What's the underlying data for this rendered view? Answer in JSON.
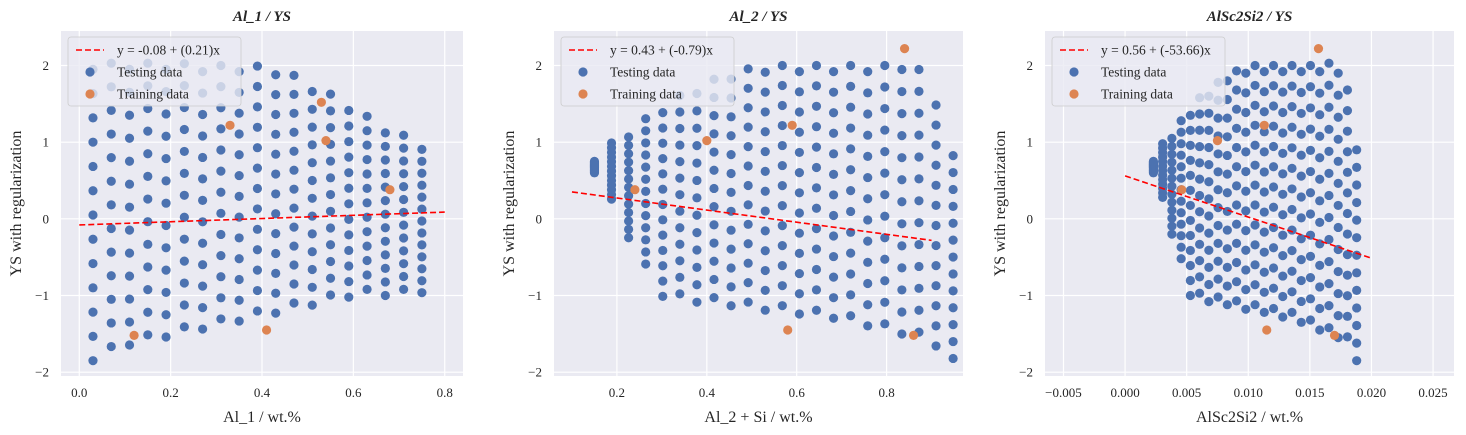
{
  "figure": {
    "background": "#ffffff",
    "axes_facecolor": "#eaeaf2",
    "grid_color": "#ffffff",
    "testing_color": "#4c72b0",
    "training_color": "#dd8452",
    "fit_color": "#ff0000"
  },
  "chart_data": [
    {
      "type": "scatter",
      "title": "Al_1 / YS",
      "xlabel": "Al_1 / wt.%",
      "ylabel": "YS with regularization",
      "xlim": [
        -0.04,
        0.84
      ],
      "ylim": [
        -2.05,
        2.45
      ],
      "xticks": [
        0.0,
        0.2,
        0.4,
        0.6,
        0.8
      ],
      "xtick_labels": [
        "0.0",
        "0.2",
        "0.4",
        "0.6",
        "0.8"
      ],
      "yticks": [
        -2,
        -1,
        0,
        1,
        2
      ],
      "ytick_labels": [
        "−2",
        "−1",
        "0",
        "1",
        "2"
      ],
      "grid": true,
      "legend": {
        "position": "upper-left",
        "entries": [
          "y = -0.08 + (0.21)x",
          "Testing data",
          "Training data"
        ]
      },
      "fit_line": {
        "label": "y = -0.08 + (0.21)x",
        "intercept": -0.08,
        "slope": 0.21,
        "x_range": [
          0.0,
          0.8
        ]
      },
      "series": [
        {
          "name": "Testing data",
          "role": "testing",
          "grid_x": [
            0.03,
            0.76
          ],
          "grid_xstep": 0.04,
          "y_top": [
            1.95,
            1.95,
            1.95,
            1.95,
            1.95,
            1.95,
            1.92,
            1.92,
            1.92,
            1.92,
            1.9,
            1.85,
            1.72,
            1.6,
            1.5,
            1.35,
            1.2,
            1.08,
            0.98,
            0.88
          ],
          "y_bot": [
            -1.85,
            -1.75,
            -1.65,
            -1.6,
            -1.55,
            -1.5,
            -1.45,
            -1.4,
            -1.35,
            -1.3,
            -1.25,
            -1.2,
            -1.15,
            -1.1,
            -1.05,
            -1.0,
            -1.0,
            -1.0,
            -1.0,
            -0.95
          ],
          "rows": 13
        },
        {
          "name": "Training data",
          "role": "training",
          "x": [
            0.12,
            0.33,
            0.41,
            0.53,
            0.54,
            0.68
          ],
          "y": [
            -1.52,
            1.22,
            -1.45,
            1.52,
            1.02,
            0.38
          ]
        }
      ]
    },
    {
      "type": "scatter",
      "title": "Al_2 / YS",
      "xlabel": "Al_2 + Si / wt.%",
      "ylabel": "YS with regularization",
      "xlim": [
        0.06,
        0.97
      ],
      "ylim": [
        -2.05,
        2.45
      ],
      "xticks": [
        0.2,
        0.4,
        0.6,
        0.8
      ],
      "xtick_labels": [
        "0.2",
        "0.4",
        "0.6",
        "0.8"
      ],
      "yticks": [
        -2,
        -1,
        0,
        1,
        2
      ],
      "ytick_labels": [
        "−2",
        "−1",
        "0",
        "1",
        "2"
      ],
      "grid": true,
      "legend": {
        "position": "upper-left",
        "entries": [
          "y = 0.43 + (-0.79)x",
          "Testing data",
          "Training data"
        ]
      },
      "fit_line": {
        "label": "y = 0.43 + (-0.79)x",
        "intercept": 0.43,
        "slope": -0.79,
        "x_range": [
          0.1,
          0.9
        ]
      },
      "series": [
        {
          "name": "Testing data",
          "role": "testing",
          "grid_x": [
            0.15,
            0.94
          ],
          "grid_xstep": 0.038,
          "y_top": [
            0.75,
            0.9,
            1.05,
            1.2,
            1.35,
            1.5,
            1.6,
            1.7,
            1.8,
            1.85,
            1.9,
            1.92,
            1.92,
            1.92,
            1.92,
            1.92,
            1.92,
            1.92,
            1.92,
            1.95,
            1.9,
            1.6,
            0.9
          ],
          "y_bot": [
            0.6,
            0.2,
            -0.2,
            -0.6,
            -1.0,
            -1.05,
            -1.08,
            -1.1,
            -1.12,
            -1.15,
            -1.18,
            -1.2,
            -1.22,
            -1.25,
            -1.28,
            -1.3,
            -1.35,
            -1.4,
            -1.45,
            -1.5,
            -1.55,
            -1.62,
            -1.85
          ],
          "rows": 13
        },
        {
          "name": "Training data",
          "role": "training",
          "x": [
            0.24,
            0.4,
            0.58,
            0.59,
            0.84,
            0.86
          ],
          "y": [
            0.38,
            1.02,
            -1.45,
            1.22,
            2.22,
            -1.52
          ]
        }
      ]
    },
    {
      "type": "scatter",
      "title": "AlSc2Si2 / YS",
      "xlabel": "AlSc2Si2 / wt.%",
      "ylabel": "YS with regularization",
      "xlim": [
        -0.0065,
        0.0267
      ],
      "ylim": [
        -2.05,
        2.45
      ],
      "xticks": [
        -0.005,
        0.0,
        0.005,
        0.01,
        0.015,
        0.02,
        0.025
      ],
      "xtick_labels": [
        "−0.005",
        "0.000",
        "0.005",
        "0.010",
        "0.015",
        "0.020",
        "0.025"
      ],
      "yticks": [
        -2,
        -1,
        0,
        1,
        2
      ],
      "ytick_labels": [
        "−2",
        "−1",
        "0",
        "1",
        "2"
      ],
      "grid": true,
      "legend": {
        "position": "upper-left",
        "entries": [
          "y = 0.56 + (-53.66)x",
          "Testing data",
          "Training data"
        ]
      },
      "fit_line": {
        "label": "y = 0.56 + (-53.66)x",
        "intercept": 0.56,
        "slope": -53.66,
        "x_range": [
          0.0,
          0.02
        ]
      },
      "series": [
        {
          "name": "Testing data",
          "role": "testing",
          "grid_x": [
            0.0023,
            0.0188
          ],
          "grid_xstep": 0.00075,
          "y_top": [
            0.75,
            0.9,
            1.05,
            1.2,
            1.35,
            1.5,
            1.6,
            1.7,
            1.8,
            1.85,
            1.9,
            1.92,
            1.92,
            1.92,
            1.92,
            1.92,
            1.92,
            1.92,
            1.92,
            1.95,
            1.9,
            1.6,
            0.9
          ],
          "y_bot": [
            0.6,
            0.2,
            -0.2,
            -0.6,
            -1.0,
            -1.05,
            -1.08,
            -1.1,
            -1.12,
            -1.15,
            -1.18,
            -1.2,
            -1.22,
            -1.25,
            -1.28,
            -1.3,
            -1.35,
            -1.4,
            -1.45,
            -1.5,
            -1.55,
            -1.62,
            -1.85
          ],
          "rows": 13
        },
        {
          "name": "Training data",
          "role": "training",
          "x": [
            0.0046,
            0.0075,
            0.0115,
            0.0113,
            0.0157,
            0.017
          ],
          "y": [
            0.38,
            1.02,
            -1.45,
            1.22,
            2.22,
            -1.52
          ]
        }
      ]
    }
  ]
}
